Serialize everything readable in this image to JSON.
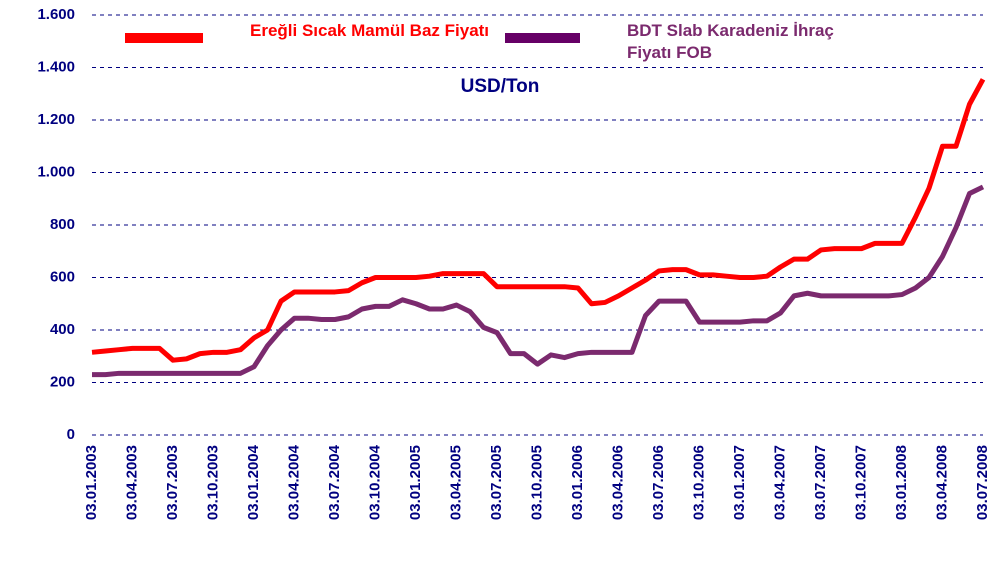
{
  "chart_data": {
    "type": "line",
    "subtitle": "USD/Ton",
    "x": [
      "03.01.2003",
      "03.02.2003",
      "03.03.2003",
      "03.04.2003",
      "03.05.2003",
      "03.06.2003",
      "03.07.2003",
      "03.08.2003",
      "03.09.2003",
      "03.10.2003",
      "03.11.2003",
      "03.12.2003",
      "03.01.2004",
      "03.02.2004",
      "03.03.2004",
      "03.04.2004",
      "03.05.2004",
      "03.06.2004",
      "03.07.2004",
      "03.08.2004",
      "03.09.2004",
      "03.10.2004",
      "03.11.2004",
      "03.12.2004",
      "03.01.2005",
      "03.02.2005",
      "03.03.2005",
      "03.04.2005",
      "03.05.2005",
      "03.06.2005",
      "03.07.2005",
      "03.08.2005",
      "03.09.2005",
      "03.10.2005",
      "03.11.2005",
      "03.12.2005",
      "03.01.2006",
      "03.02.2006",
      "03.03.2006",
      "03.04.2006",
      "03.05.2006",
      "03.06.2006",
      "03.07.2006",
      "03.08.2006",
      "03.09.2006",
      "03.10.2006",
      "03.11.2006",
      "03.12.2006",
      "03.01.2007",
      "03.02.2007",
      "03.03.2007",
      "03.04.2007",
      "03.05.2007",
      "03.06.2007",
      "03.07.2007",
      "03.08.2007",
      "03.09.2007",
      "03.10.2007",
      "03.11.2007",
      "03.12.2007",
      "03.01.2008",
      "03.02.2008",
      "03.03.2008",
      "03.04.2008",
      "03.05.2008",
      "03.06.2008",
      "03.07.2008"
    ],
    "xticks": [
      "03.01.2003",
      "03.04.2003",
      "03.07.2003",
      "03.10.2003",
      "03.01.2004",
      "03.04.2004",
      "03.07.2004",
      "03.10.2004",
      "03.01.2005",
      "03.04.2005",
      "03.07.2005",
      "03.10.2005",
      "03.01.2006",
      "03.04.2006",
      "03.07.2006",
      "03.10.2006",
      "03.01.2007",
      "03.04.2007",
      "03.07.2007",
      "03.10.2007",
      "03.01.2008",
      "03.04.2008",
      "03.07.2008"
    ],
    "series": [
      {
        "name": "Ereğli Sıcak Mamül Baz Fiyatı",
        "color": "#ff0000",
        "values": [
          315,
          320,
          325,
          330,
          330,
          330,
          285,
          290,
          310,
          315,
          315,
          325,
          370,
          400,
          510,
          545,
          545,
          545,
          545,
          550,
          580,
          600,
          600,
          600,
          600,
          605,
          615,
          615,
          615,
          615,
          565,
          565,
          565,
          565,
          565,
          565,
          560,
          500,
          505,
          530,
          560,
          590,
          625,
          630,
          630,
          610,
          610,
          605,
          600,
          600,
          605,
          640,
          670,
          670,
          705,
          710,
          710,
          710,
          730,
          730,
          730,
          830,
          940,
          1100,
          1100,
          1260,
          1355
        ]
      },
      {
        "name": "BDT Slab Karadeniz İhraç Fiyatı FOB",
        "color": "#7b2a6e",
        "values": [
          230,
          230,
          235,
          235,
          235,
          235,
          235,
          235,
          235,
          235,
          235,
          235,
          260,
          340,
          400,
          445,
          445,
          440,
          440,
          450,
          480,
          490,
          490,
          515,
          500,
          480,
          480,
          495,
          470,
          410,
          390,
          310,
          310,
          270,
          305,
          295,
          310,
          315,
          315,
          315,
          315,
          455,
          510,
          510,
          510,
          430,
          430,
          430,
          430,
          435,
          435,
          465,
          530,
          540,
          530,
          530,
          530,
          530,
          530,
          530,
          535,
          560,
          600,
          680,
          790,
          920,
          945
        ]
      }
    ],
    "ylim": [
      0,
      1600
    ],
    "yticks": [
      0,
      200,
      400,
      600,
      800,
      {
        "value": 1000,
        "label": "1.000"
      },
      {
        "value": 1200,
        "label": "1.200"
      },
      {
        "value": 1400,
        "label": "1.400"
      },
      {
        "value": 1600,
        "label": "1.600"
      }
    ],
    "grid": true
  }
}
